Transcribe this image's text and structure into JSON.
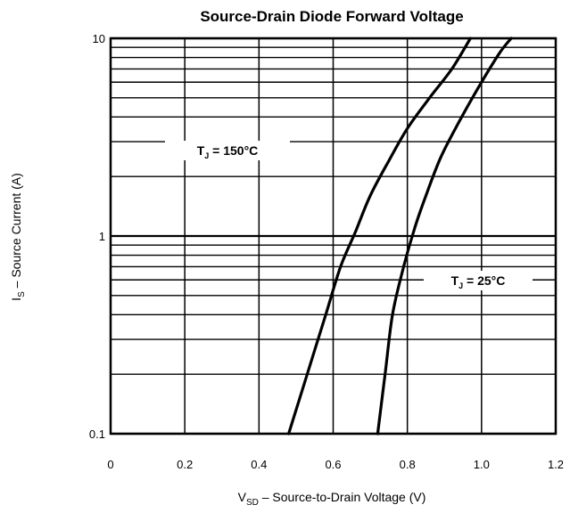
{
  "chart_data": {
    "type": "line",
    "title": "Source-Drain Diode Forward Voltage",
    "xlabel": {
      "main": "V",
      "sub": "SD",
      "rest": " – Source-to-Drain Voltage (V)"
    },
    "ylabel": {
      "main": "I",
      "sub": "S",
      "rest": " – Source Current (A)"
    },
    "xlim": [
      0,
      1.2
    ],
    "ylim": [
      0.1,
      10
    ],
    "yscale": "log",
    "x_ticks": [
      "0",
      "0.2",
      "0.4",
      "0.6",
      "0.8",
      "1.0",
      "1.2"
    ],
    "y_ticks": [
      "0.1",
      "1",
      "10"
    ],
    "grid": true,
    "series": [
      {
        "label": {
          "main": "T",
          "sub": "J",
          "rest": " = 150°C"
        },
        "x": [
          0.48,
          0.53,
          0.58,
          0.62,
          0.66,
          0.7,
          0.75,
          0.8,
          0.86,
          0.92,
          0.97
        ],
        "y": [
          0.1,
          0.2,
          0.4,
          0.7,
          1.05,
          1.6,
          2.4,
          3.5,
          5.0,
          7.0,
          10.0
        ]
      },
      {
        "label": {
          "main": "T",
          "sub": "J",
          "rest": " = 25°C"
        },
        "x": [
          0.72,
          0.74,
          0.76,
          0.79,
          0.82,
          0.85,
          0.89,
          0.94,
          1.0,
          1.05,
          1.08
        ],
        "y": [
          0.1,
          0.2,
          0.4,
          0.7,
          1.1,
          1.6,
          2.5,
          3.8,
          6.0,
          8.5,
          10.0
        ]
      }
    ]
  }
}
